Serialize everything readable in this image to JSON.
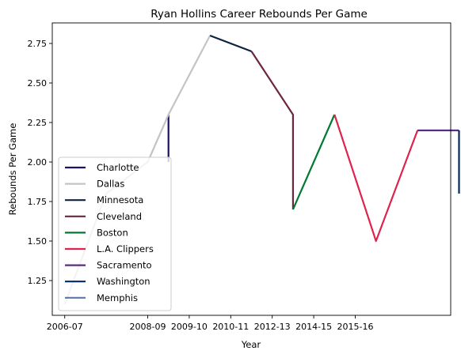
{
  "chart_data": {
    "type": "line",
    "title": "Ryan Hollins Career Rebounds Per Game",
    "xlabel": "Year",
    "ylabel": "Rebounds Per Game",
    "xlim": [
      -0.3,
      9.3
    ],
    "ylim": [
      1.03,
      2.88
    ],
    "x_ticks": [
      {
        "x": 0,
        "label": "2006-07"
      },
      {
        "x": 2,
        "label": "2008-09"
      },
      {
        "x": 3,
        "label": "2009-10"
      },
      {
        "x": 4,
        "label": "2010-11"
      },
      {
        "x": 5,
        "label": "2012-13"
      },
      {
        "x": 6,
        "label": "2014-15"
      },
      {
        "x": 7,
        "label": "2015-16"
      }
    ],
    "y_ticks": [
      1.25,
      1.5,
      1.75,
      2.0,
      2.25,
      2.5,
      2.75
    ],
    "y_tick_labels": [
      "1.25",
      "1.50",
      "1.75",
      "2.00",
      "2.25",
      "2.50",
      "2.75"
    ],
    "grid": false,
    "legend_position": "lower-left",
    "series": [
      {
        "name": "Charlotte",
        "color": "#1d1160",
        "points": [
          [
            2.5,
            2.0
          ],
          [
            2.5,
            2.3
          ]
        ]
      },
      {
        "name": "Dallas",
        "color": "#c4c4c4",
        "points": [
          [
            0.0,
            1.1
          ],
          [
            1.0,
            1.8
          ],
          [
            2.0,
            2.0
          ],
          [
            2.5,
            2.3
          ],
          [
            3.5,
            2.8
          ]
        ]
      },
      {
        "name": "Minnesota",
        "color": "#0c2340",
        "points": [
          [
            3.5,
            2.8
          ],
          [
            4.5,
            2.7
          ]
        ]
      },
      {
        "name": "Cleveland",
        "color": "#6f263d",
        "points": [
          [
            4.5,
            2.7
          ],
          [
            5.5,
            2.3
          ],
          [
            5.5,
            1.7
          ]
        ]
      },
      {
        "name": "Boston",
        "color": "#007a33",
        "points": [
          [
            5.5,
            1.7
          ],
          [
            6.5,
            2.3
          ]
        ]
      },
      {
        "name": "L.A. Clippers",
        "color": "#e0234e",
        "points": [
          [
            6.5,
            2.3
          ],
          [
            7.5,
            1.5
          ],
          [
            8.5,
            2.2
          ]
        ]
      },
      {
        "name": "Sacramento",
        "color": "#5a2d81",
        "points": [
          [
            8.5,
            2.2
          ],
          [
            9.5,
            2.2
          ]
        ]
      },
      {
        "name": "Washington",
        "color": "#002b5c",
        "points": [
          [
            9.5,
            2.2
          ],
          [
            9.5,
            1.8
          ]
        ]
      },
      {
        "name": "Memphis",
        "color": "#5d76a9",
        "points": []
      }
    ]
  }
}
